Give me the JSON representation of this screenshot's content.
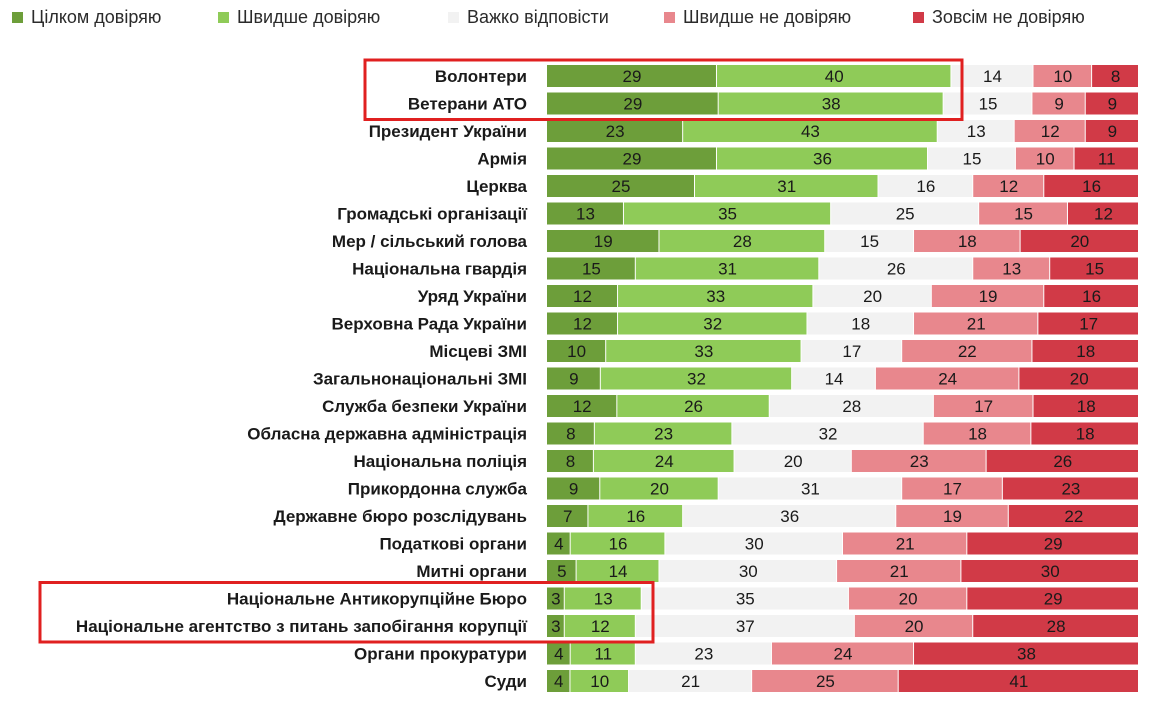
{
  "chart_data": {
    "type": "bar",
    "orientation": "horizontal",
    "stacked": true,
    "grid": false,
    "legend_position": "top",
    "title": "",
    "xlabel": "",
    "ylabel": "",
    "xlim": [
      0,
      100
    ],
    "categories": [
      "Волонтери",
      "Ветерани АТО",
      "Президент України",
      "Армія",
      "Церква",
      "Громадські організації",
      "Мер / сільський голова",
      "Національна гвардія",
      "Уряд України",
      "Верховна Рада України",
      "Місцеві ЗМІ",
      "Загальнонаціональні ЗМІ",
      "Служба безпеки України",
      "Обласна державна адміністрація",
      "Національна поліція",
      "Прикордонна служба",
      "Державне бюро розслідувань",
      "Податкові органи",
      "Митні органи",
      "Національне Антикорупційне Бюро",
      "Національне агентство з питань запобігання корупції",
      "Органи прокуратури",
      "Суди"
    ],
    "series": [
      {
        "name": "Цілком довіряю",
        "color": "#6d9e3a",
        "values": [
          29,
          29,
          23,
          29,
          25,
          13,
          19,
          15,
          12,
          12,
          10,
          9,
          12,
          8,
          8,
          9,
          7,
          4,
          5,
          3,
          3,
          4,
          4
        ]
      },
      {
        "name": "Швидше довіряю",
        "color": "#8fcb58",
        "values": [
          40,
          38,
          43,
          36,
          31,
          35,
          28,
          31,
          33,
          32,
          33,
          32,
          26,
          23,
          24,
          20,
          16,
          16,
          14,
          13,
          12,
          11,
          10
        ]
      },
      {
        "name": "Важко відповісти",
        "color": "#f2f2f2",
        "values": [
          14,
          15,
          13,
          15,
          16,
          25,
          15,
          26,
          20,
          18,
          17,
          14,
          28,
          32,
          20,
          31,
          36,
          30,
          30,
          35,
          37,
          23,
          21
        ]
      },
      {
        "name": "Швидше не довіряю",
        "color": "#e8878d",
        "values": [
          10,
          9,
          12,
          10,
          12,
          15,
          18,
          13,
          19,
          21,
          22,
          24,
          17,
          18,
          23,
          17,
          19,
          21,
          21,
          20,
          20,
          24,
          25
        ]
      },
      {
        "name": "Зовсім не довіряю",
        "color": "#d13a47",
        "values": [
          8,
          9,
          9,
          11,
          16,
          12,
          20,
          15,
          16,
          17,
          18,
          20,
          18,
          18,
          26,
          23,
          22,
          29,
          30,
          29,
          28,
          38,
          41
        ]
      }
    ],
    "highlight_color": "#e02020",
    "highlight_groups": [
      [
        0,
        1
      ],
      [
        19,
        20
      ]
    ]
  }
}
